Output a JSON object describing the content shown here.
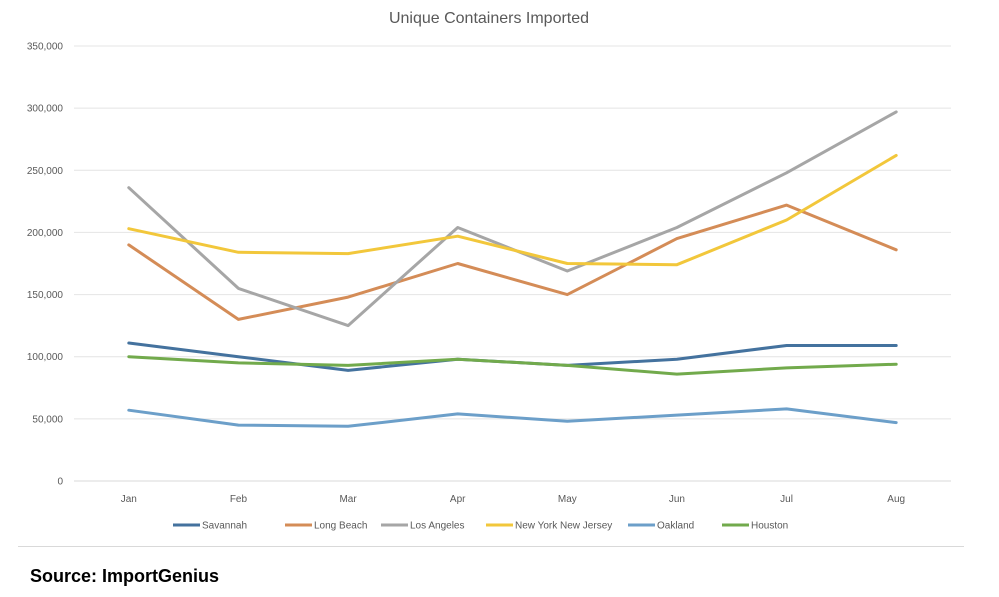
{
  "chart_data": {
    "type": "line",
    "title": "Unique Containers Imported",
    "xlabel": "",
    "ylabel": "",
    "categories": [
      "Jan",
      "Feb",
      "Mar",
      "Apr",
      "May",
      "Jun",
      "Jul",
      "Aug"
    ],
    "ylim": [
      0,
      350000
    ],
    "yticks": [
      0,
      50000,
      100000,
      150000,
      200000,
      250000,
      300000,
      350000
    ],
    "ytick_labels": [
      "0",
      "50,000",
      "100,000",
      "150,000",
      "200,000",
      "250,000",
      "300,000",
      "350,000"
    ],
    "grid": true,
    "legend_position": "bottom",
    "series": [
      {
        "name": "Savannah",
        "color": "#44729e",
        "values": [
          111000,
          100000,
          89000,
          98000,
          93000,
          98000,
          109000,
          109000
        ]
      },
      {
        "name": "Long Beach",
        "color": "#d48c57",
        "values": [
          190000,
          130000,
          148000,
          175000,
          150000,
          195000,
          222000,
          186000
        ]
      },
      {
        "name": "Los Angeles",
        "color": "#a6a6a6",
        "values": [
          236000,
          155000,
          125000,
          204000,
          169000,
          204000,
          248000,
          297000
        ]
      },
      {
        "name": "New York New Jersey",
        "color": "#f2c73b",
        "values": [
          203000,
          184000,
          183000,
          197000,
          175000,
          174000,
          210000,
          262000
        ]
      },
      {
        "name": "Oakland",
        "color": "#6c9fc9",
        "values": [
          57000,
          45000,
          44000,
          54000,
          48000,
          53000,
          58000,
          47000
        ]
      },
      {
        "name": "Houston",
        "color": "#72aa4c",
        "values": [
          100000,
          95000,
          93000,
          98000,
          93000,
          86000,
          91000,
          94000
        ]
      }
    ]
  },
  "source": "Source: ImportGenius"
}
